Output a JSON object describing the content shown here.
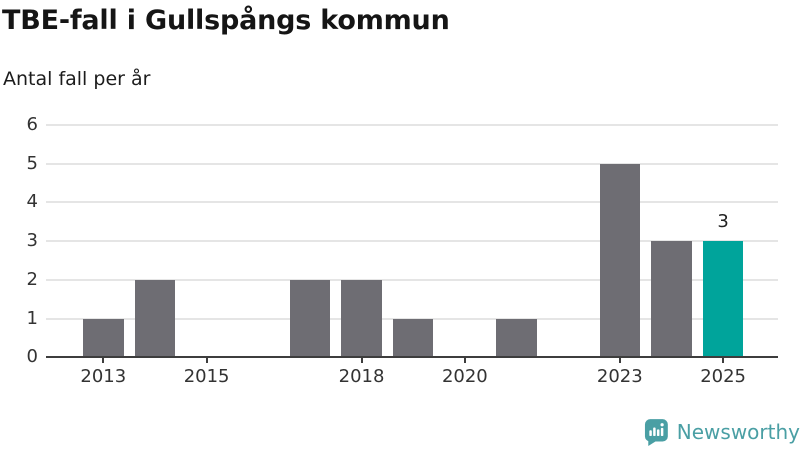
{
  "header": {
    "title": "TBE-fall i Gullspångs kommun",
    "subtitle": "Antal fall per år"
  },
  "chart_data": {
    "type": "bar",
    "title": "TBE-fall i Gullspångs kommun",
    "ylabel": "Antal fall per år",
    "xlabel": "",
    "categories": [
      "2013",
      "2014",
      "2015",
      "2016",
      "2017",
      "2018",
      "2019",
      "2020",
      "2021",
      "2022",
      "2023",
      "2024",
      "2025"
    ],
    "values": [
      1,
      2,
      0,
      0,
      2,
      2,
      1,
      0,
      1,
      0,
      5,
      3,
      3
    ],
    "highlight": {
      "category": "2025",
      "index": 12,
      "value": 3,
      "label": "3"
    },
    "x_tick_labels": [
      {
        "label": "2013",
        "index": 0
      },
      {
        "label": "2015",
        "index": 2
      },
      {
        "label": "2018",
        "index": 5
      },
      {
        "label": "2020",
        "index": 7
      },
      {
        "label": "2023",
        "index": 10
      },
      {
        "label": "2025",
        "index": 12
      }
    ],
    "y_ticks": [
      0,
      1,
      2,
      3,
      4,
      5,
      6
    ],
    "ylim": [
      0,
      6
    ],
    "grid": true,
    "legend_position": "none",
    "colors": {
      "bar": "#6e6d73",
      "highlight": "#00a49b",
      "gridline": "#e5e5e5",
      "axis": "#3d3d3d",
      "tick_label": "#333333",
      "value_label": "#222222"
    }
  },
  "footer": {
    "brand": "Newsworthy",
    "logo_icon": "bar-chart-speech-bubble-icon",
    "brand_color": "#4a9fa4"
  }
}
